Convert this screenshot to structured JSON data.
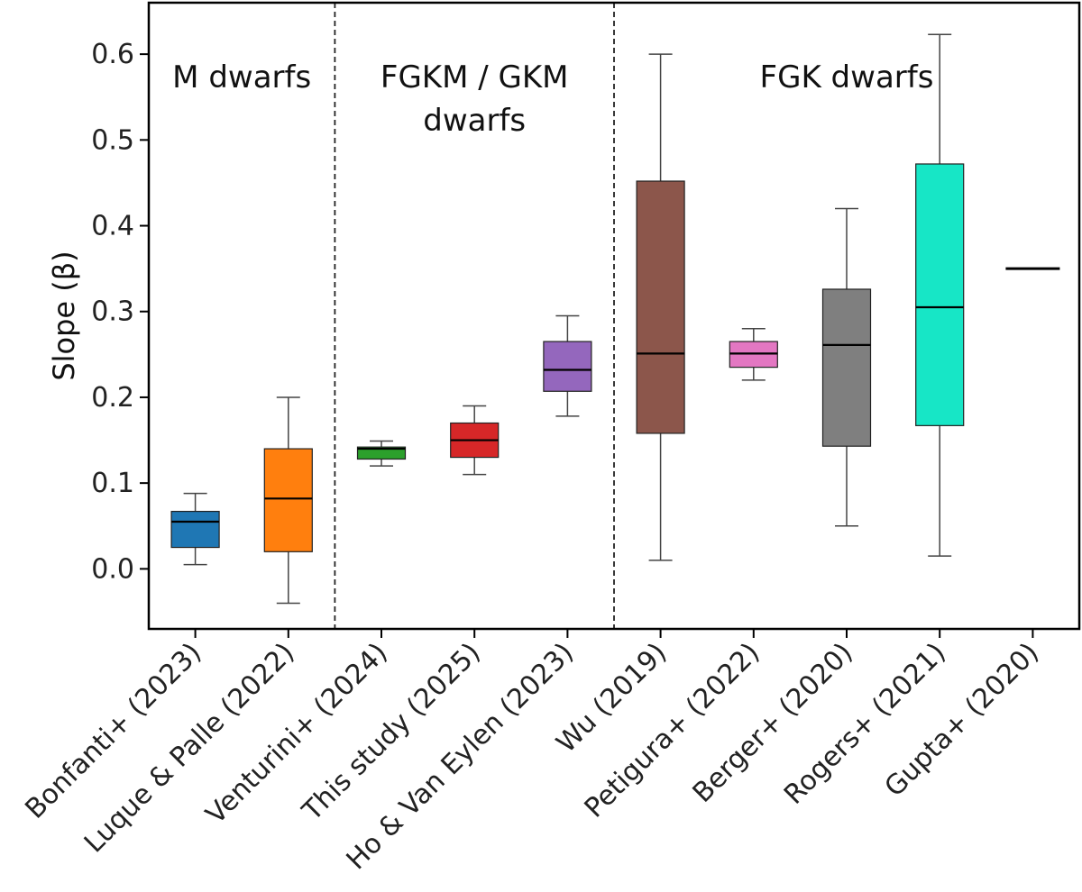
{
  "chart_data": {
    "type": "box",
    "title": "",
    "xlabel": "",
    "ylabel": "Slope (β)",
    "ylim": [
      -0.07,
      0.66
    ],
    "yticks": [
      "0.0",
      "0.1",
      "0.2",
      "0.3",
      "0.4",
      "0.5",
      "0.6"
    ],
    "grid": false,
    "categories": [
      "Bonfanti+ (2023)",
      "Luque & Palle (2022)",
      "Venturini+ (2024)",
      "This study (2025)",
      "Ho & Van Eylen (2023)",
      "Wu (2019)",
      "Petigura+ (2022)",
      "Berger+ (2020)",
      "Rogers+ (2021)",
      "Gupta+ (2020)"
    ],
    "boxes": [
      {
        "name": "Bonfanti+ (2023)",
        "whisker_low": 0.005,
        "q1": 0.025,
        "median": 0.055,
        "q3": 0.067,
        "whisker_high": 0.088,
        "color": "#1f77b4"
      },
      {
        "name": "Luque & Palle (2022)",
        "whisker_low": -0.04,
        "q1": 0.02,
        "median": 0.082,
        "q3": 0.14,
        "whisker_high": 0.2,
        "color": "#ff7f0e"
      },
      {
        "name": "Venturini+ (2024)",
        "whisker_low": 0.12,
        "q1": 0.128,
        "median": 0.14,
        "q3": 0.142,
        "whisker_high": 0.149,
        "color": "#2ca02c"
      },
      {
        "name": "This study (2025)",
        "whisker_low": 0.11,
        "q1": 0.13,
        "median": 0.15,
        "q3": 0.17,
        "whisker_high": 0.19,
        "color": "#d62728"
      },
      {
        "name": "Ho & Van Eylen (2023)",
        "whisker_low": 0.178,
        "q1": 0.207,
        "median": 0.232,
        "q3": 0.265,
        "whisker_high": 0.295,
        "color": "#9467bd"
      },
      {
        "name": "Wu (2019)",
        "whisker_low": 0.01,
        "q1": 0.158,
        "median": 0.251,
        "q3": 0.452,
        "whisker_high": 0.6,
        "color": "#8c564b"
      },
      {
        "name": "Petigura+ (2022)",
        "whisker_low": 0.22,
        "q1": 0.235,
        "median": 0.251,
        "q3": 0.265,
        "whisker_high": 0.28,
        "color": "#e377c2"
      },
      {
        "name": "Berger+ (2020)",
        "whisker_low": 0.05,
        "q1": 0.143,
        "median": 0.261,
        "q3": 0.326,
        "whisker_high": 0.42,
        "color": "#7f7f7f"
      },
      {
        "name": "Rogers+ (2021)",
        "whisker_low": 0.015,
        "q1": 0.167,
        "median": 0.305,
        "q3": 0.472,
        "whisker_high": 0.623,
        "color": "#17e6c6"
      },
      {
        "name": "Gupta+ (2020)",
        "whisker_low": 0.35,
        "q1": 0.35,
        "median": 0.35,
        "q3": 0.35,
        "whisker_high": 0.35,
        "color": "#000000"
      }
    ],
    "regions": [
      {
        "label_lines": [
          "M dwarfs"
        ],
        "first": 0,
        "last": 1
      },
      {
        "label_lines": [
          "FGKM / GKM",
          "dwarfs"
        ],
        "first": 2,
        "last": 4
      },
      {
        "label_lines": [
          "FGK dwarfs"
        ],
        "first": 5,
        "last": 9
      }
    ],
    "dividers_after": [
      1,
      4
    ]
  }
}
